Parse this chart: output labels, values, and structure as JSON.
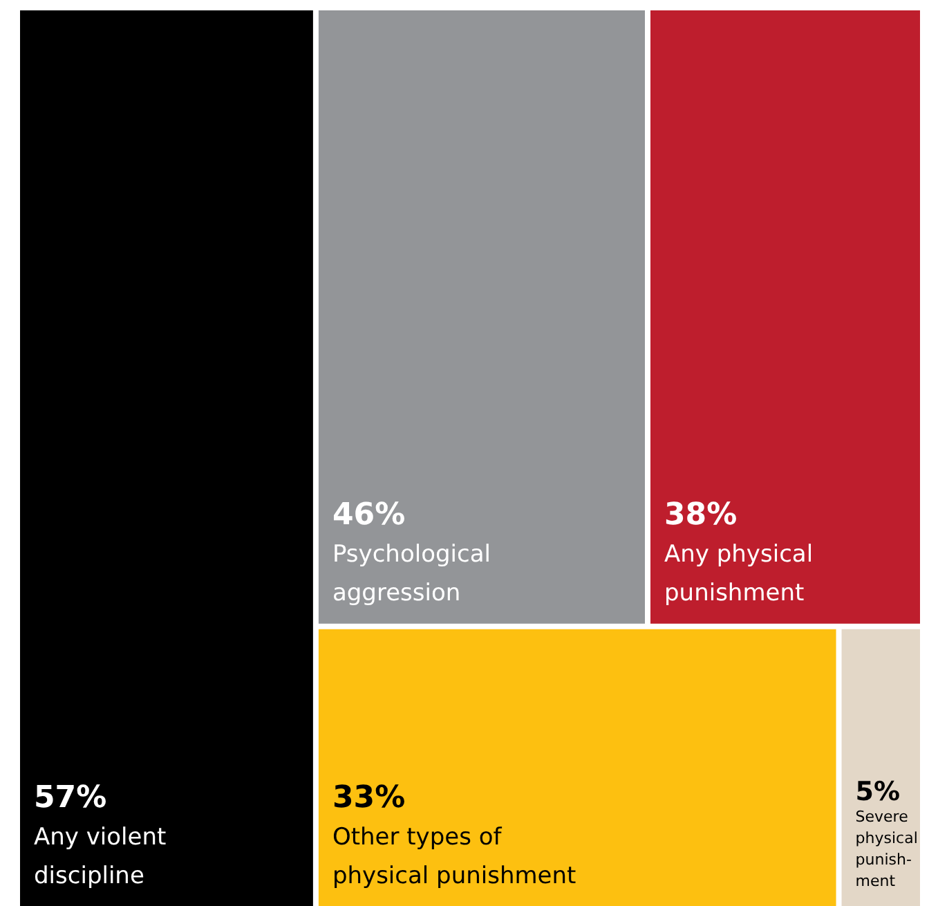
{
  "chart_data": {
    "type": "other",
    "categories": [
      "Any violent\ndiscipline",
      "Psychological\naggression",
      "Any physical\npunishment",
      "Other types of\nphysical punishment",
      "Severe\nphysical\npunish-\nment"
    ],
    "values": [
      57,
      46,
      38,
      33,
      5
    ],
    "value_labels": [
      "57%",
      "46%",
      "38%",
      "33%",
      "5%"
    ],
    "colors": [
      "#000000",
      "#939598",
      "#be1e2d",
      "#fdc010",
      "#e3d7c7"
    ]
  }
}
